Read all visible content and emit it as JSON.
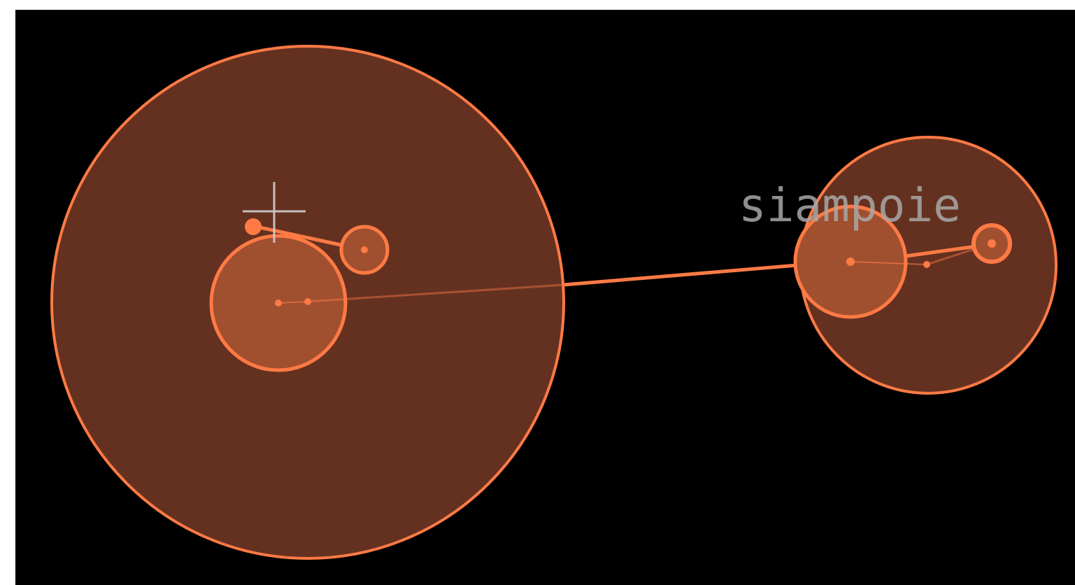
{
  "game": {
    "word": "siampoie",
    "colors": {
      "background": "#000000",
      "frame": "#ffffff",
      "accent": "#ff7a45",
      "large_fill": "#643120",
      "small_fill": "#a0502f",
      "text": "#a8a8a8",
      "crosshair": "#d0d0d0"
    },
    "icons": {
      "cursor": "crosshair-icon"
    }
  }
}
